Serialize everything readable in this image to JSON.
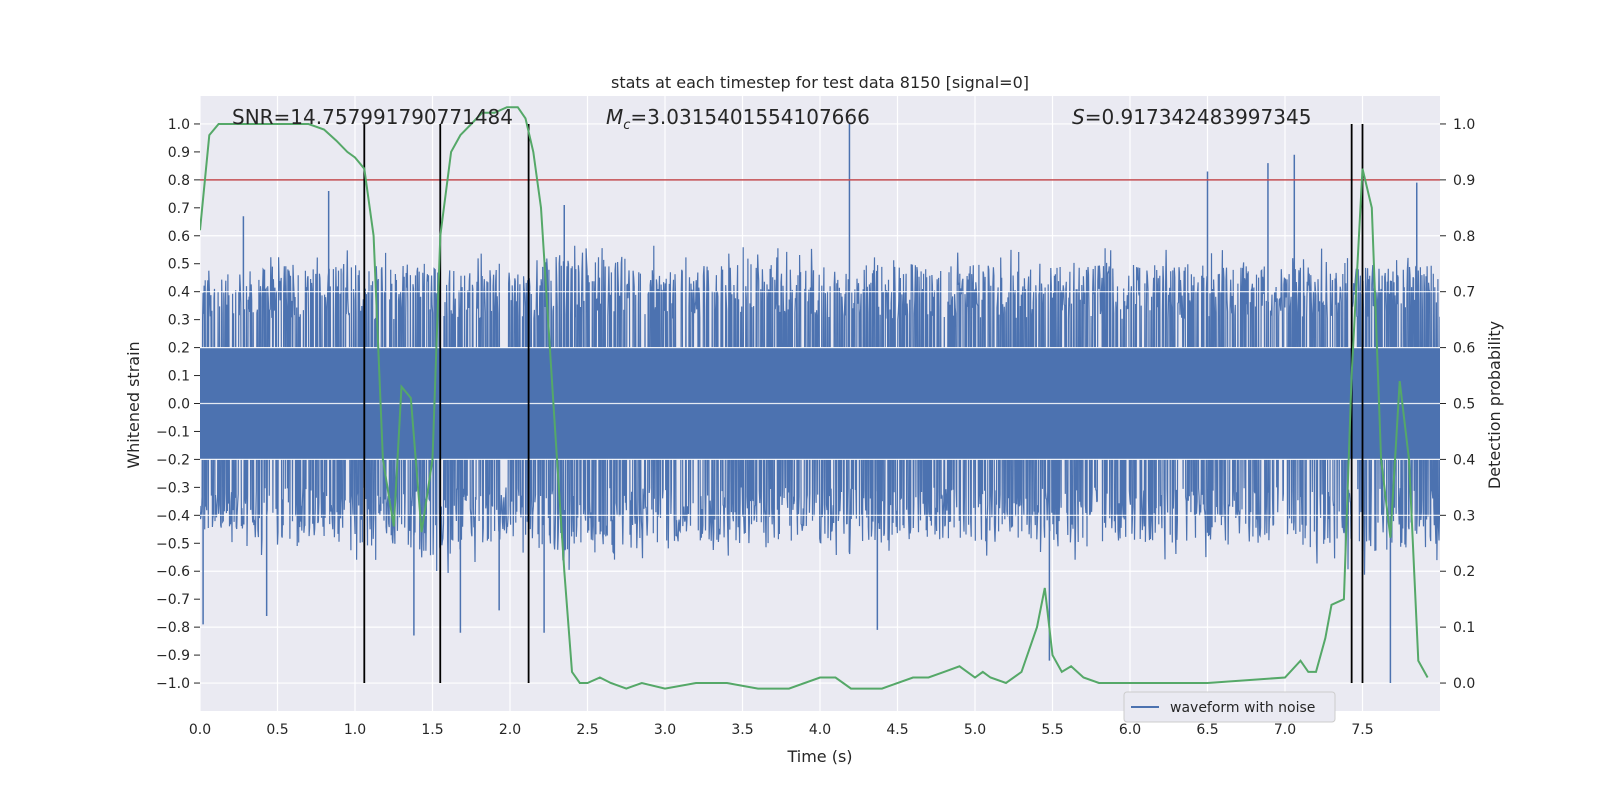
{
  "chart_data": {
    "type": "line",
    "title": "stats at each timestep for test data 8150 [signal=0]",
    "xlabel": "Time (s)",
    "ylabel": "Whitened strain",
    "y2label": "Detection probability",
    "xlim": [
      0,
      8.0
    ],
    "ylim": [
      -1.1,
      1.1
    ],
    "y2lim": [
      -0.05,
      1.05
    ],
    "x_ticks": [
      "0.0",
      "0.5",
      "1.0",
      "1.5",
      "2.0",
      "2.5",
      "3.0",
      "3.5",
      "4.0",
      "4.5",
      "5.0",
      "5.5",
      "6.0",
      "6.5",
      "7.0",
      "7.5"
    ],
    "y_ticks": [
      "1.0",
      "0.9",
      "0.8",
      "0.7",
      "0.6",
      "0.5",
      "0.4",
      "0.3",
      "0.2",
      "0.1",
      "0.0",
      "-0.1",
      "-0.2",
      "-0.3",
      "-0.4",
      "-0.5",
      "-0.6",
      "-0.7",
      "-0.8",
      "-0.9",
      "-1.0"
    ],
    "y2_ticks": [
      "1.0",
      "0.9",
      "0.8",
      "0.7",
      "0.6",
      "0.5",
      "0.4",
      "0.3",
      "0.2",
      "0.1",
      "0.0"
    ],
    "grid": true,
    "legend_position": "lower-right",
    "annotations": {
      "snr": "SNR=14.757991790771484",
      "mc_prefix": "M",
      "mc_sub": "c",
      "mc_value": "=3.0315401554107666",
      "s_prefix": "S",
      "s_value": "=0.917342483997345"
    },
    "threshold": {
      "y": 0.8,
      "color": "#c44e52"
    },
    "vertical_lines_x": [
      1.06,
      1.55,
      2.12,
      7.43,
      7.5
    ],
    "series": [
      {
        "name": "waveform with noise",
        "color": "#4c72b0",
        "axis": "left",
        "description_envelope": {
          "x": [
            0.0,
            0.5,
            1.0,
            1.5,
            2.0,
            2.5,
            3.0,
            3.5,
            4.0,
            4.5,
            5.0,
            5.5,
            6.0,
            6.5,
            7.0,
            7.5,
            8.0
          ],
          "typical_high": [
            0.45,
            0.5,
            0.5,
            0.5,
            0.5,
            0.55,
            0.5,
            0.5,
            0.5,
            0.5,
            0.5,
            0.5,
            0.5,
            0.5,
            0.5,
            0.5,
            0.5
          ],
          "typical_low": [
            -0.45,
            -0.5,
            -0.5,
            -0.55,
            -0.5,
            -0.55,
            -0.5,
            -0.5,
            -0.5,
            -0.5,
            -0.5,
            -0.5,
            -0.5,
            -0.5,
            -0.5,
            -0.55,
            -0.5
          ]
        },
        "peaks": [
          {
            "x": 0.02,
            "y": -0.79
          },
          {
            "x": 0.28,
            "y": 0.67
          },
          {
            "x": 0.43,
            "y": -0.76
          },
          {
            "x": 0.83,
            "y": 0.76
          },
          {
            "x": 1.38,
            "y": -0.83
          },
          {
            "x": 1.68,
            "y": -0.82
          },
          {
            "x": 1.93,
            "y": -0.74
          },
          {
            "x": 2.22,
            "y": -0.82
          },
          {
            "x": 2.35,
            "y": 0.71
          },
          {
            "x": 4.19,
            "y": 1.0
          },
          {
            "x": 4.37,
            "y": -0.81
          },
          {
            "x": 5.48,
            "y": -0.92
          },
          {
            "x": 6.5,
            "y": 0.83
          },
          {
            "x": 6.89,
            "y": 0.86
          },
          {
            "x": 7.06,
            "y": 0.89
          },
          {
            "x": 7.68,
            "y": -1.0
          },
          {
            "x": 7.85,
            "y": 0.79
          }
        ]
      },
      {
        "name": "detection probability",
        "color": "#55a868",
        "axis": "right",
        "x": [
          0.0,
          0.06,
          0.12,
          0.3,
          0.5,
          0.7,
          0.8,
          0.88,
          0.95,
          1.0,
          1.06,
          1.12,
          1.18,
          1.25,
          1.3,
          1.36,
          1.43,
          1.5,
          1.55,
          1.62,
          1.68,
          1.75,
          1.82,
          1.9,
          1.98,
          2.05,
          2.1,
          2.15,
          2.2,
          2.28,
          2.35,
          2.4,
          2.45,
          2.5,
          2.58,
          2.65,
          2.75,
          2.85,
          3.0,
          3.2,
          3.4,
          3.6,
          3.8,
          4.0,
          4.1,
          4.2,
          4.4,
          4.6,
          4.7,
          4.8,
          4.9,
          5.0,
          5.05,
          5.1,
          5.2,
          5.3,
          5.4,
          5.45,
          5.5,
          5.56,
          5.62,
          5.7,
          5.8,
          6.0,
          6.5,
          7.0,
          7.1,
          7.15,
          7.2,
          7.26,
          7.3,
          7.38,
          7.43,
          7.5,
          7.56,
          7.62,
          7.68,
          7.74,
          7.8,
          7.86,
          7.92
        ],
        "y": [
          0.81,
          0.98,
          1.0,
          1.0,
          1.0,
          1.0,
          0.99,
          0.97,
          0.95,
          0.94,
          0.92,
          0.8,
          0.4,
          0.28,
          0.53,
          0.51,
          0.27,
          0.4,
          0.8,
          0.95,
          0.98,
          1.0,
          1.02,
          1.02,
          1.03,
          1.03,
          1.01,
          0.95,
          0.85,
          0.5,
          0.2,
          0.02,
          0.0,
          0.0,
          0.01,
          0.0,
          -0.01,
          0.0,
          -0.01,
          0.0,
          0.0,
          -0.01,
          -0.01,
          0.01,
          0.01,
          -0.01,
          -0.01,
          0.01,
          0.01,
          0.02,
          0.03,
          0.01,
          0.02,
          0.01,
          0.0,
          0.02,
          0.1,
          0.17,
          0.05,
          0.02,
          0.03,
          0.01,
          0.0,
          0.0,
          0.0,
          0.01,
          0.04,
          0.02,
          0.02,
          0.08,
          0.14,
          0.15,
          0.55,
          0.92,
          0.85,
          0.4,
          0.26,
          0.54,
          0.4,
          0.04,
          0.01
        ]
      }
    ]
  }
}
